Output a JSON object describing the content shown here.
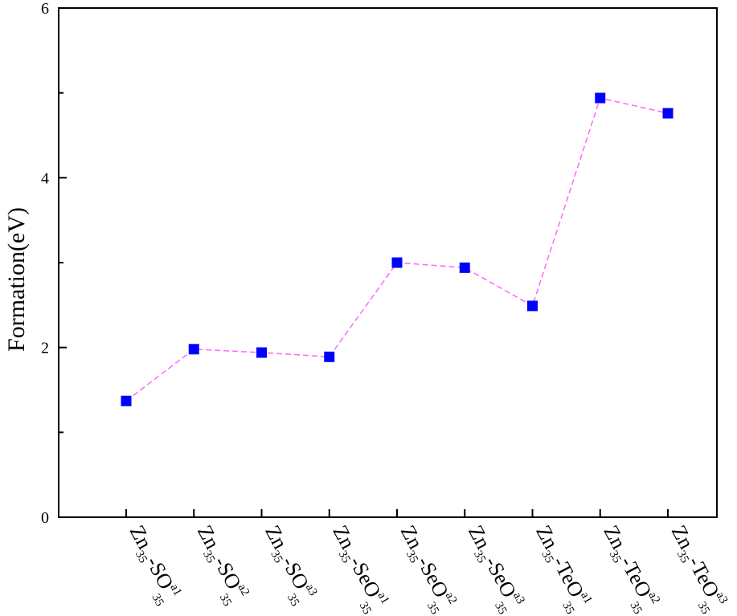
{
  "chart_data": {
    "type": "line",
    "title": "",
    "xlabel": "",
    "ylabel": "Formation(eV)",
    "ylim": [
      0,
      6
    ],
    "y_ticks_labeled": [
      0,
      2,
      4,
      6
    ],
    "y_ticks_minor": [
      1,
      3,
      5
    ],
    "grid": false,
    "legend": "none",
    "categories": [
      {
        "base": "Zn",
        "sub1": "35",
        "dash": "-",
        "anion": "SO",
        "sup": "a1",
        "sub2": "35"
      },
      {
        "base": "Zn",
        "sub1": "35",
        "dash": "-",
        "anion": "SO",
        "sup": "a2",
        "sub2": "35"
      },
      {
        "base": "Zn",
        "sub1": "35",
        "dash": "-",
        "anion": "SO",
        "sup": "a3",
        "sub2": "35"
      },
      {
        "base": "Zn",
        "sub1": "35",
        "dash": "-",
        "anion": "SeO",
        "sup": "a1",
        "sub2": "35"
      },
      {
        "base": "Zn",
        "sub1": "35",
        "dash": "-",
        "anion": "SeO",
        "sup": "a2",
        "sub2": "35"
      },
      {
        "base": "Zn",
        "sub1": "35",
        "dash": "-",
        "anion": "SeO",
        "sup": "a3",
        "sub2": "35"
      },
      {
        "base": "Zn",
        "sub1": "35",
        "dash": "-",
        "anion": "TeO",
        "sup": "a1",
        "sub2": "35"
      },
      {
        "base": "Zn",
        "sub1": "35",
        "dash": "-",
        "anion": "TeO",
        "sup": "a2",
        "sub2": "35"
      },
      {
        "base": "Zn",
        "sub1": "35",
        "dash": "-",
        "anion": "TeO",
        "sup": "a3",
        "sub2": "35"
      }
    ],
    "series": [
      {
        "values": [
          1.37,
          1.98,
          1.94,
          1.89,
          3.0,
          2.94,
          2.49,
          4.94,
          4.76
        ]
      }
    ],
    "colors": {
      "marker": "#0000ff",
      "line": "#ff66ff",
      "axis": "#000000"
    }
  }
}
